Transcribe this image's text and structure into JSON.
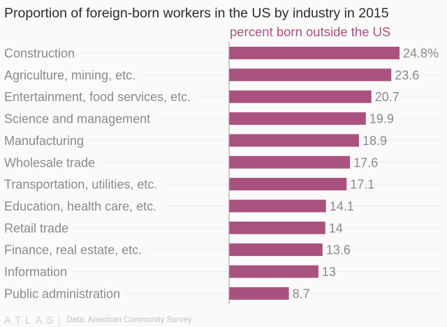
{
  "chart_data": {
    "type": "bar",
    "orientation": "horizontal",
    "title": "Proportion of foreign-born workers in the US by industry in 2015",
    "subtitle": "percent born outside the US",
    "xlabel": "",
    "ylabel": "",
    "unit": "%",
    "xlim": [
      0,
      25
    ],
    "grid": true,
    "categories": [
      "Construction",
      "Agriculture, mining, etc.",
      "Entertainment, food services, etc.",
      "Science and management",
      "Manufacturing",
      "Wholesale trade",
      "Transportation, utilities, etc.",
      "Education, health care, etc.",
      "Retail trade",
      "Finance, real estate, etc.",
      "Information",
      "Public administration"
    ],
    "values": [
      24.8,
      23.6,
      20.7,
      19.9,
      18.9,
      17.6,
      17.1,
      14.1,
      14,
      13.6,
      13,
      8.7
    ],
    "value_labels": [
      "24.8%",
      "23.6",
      "20.7",
      "19.9",
      "18.9",
      "17.6",
      "17.1",
      "14.1",
      "14",
      "13.6",
      "13",
      "8.7"
    ],
    "bar_color": "#a9527f"
  },
  "footer": {
    "logo": "ATLAS",
    "source": "Data: American Community Survey"
  }
}
